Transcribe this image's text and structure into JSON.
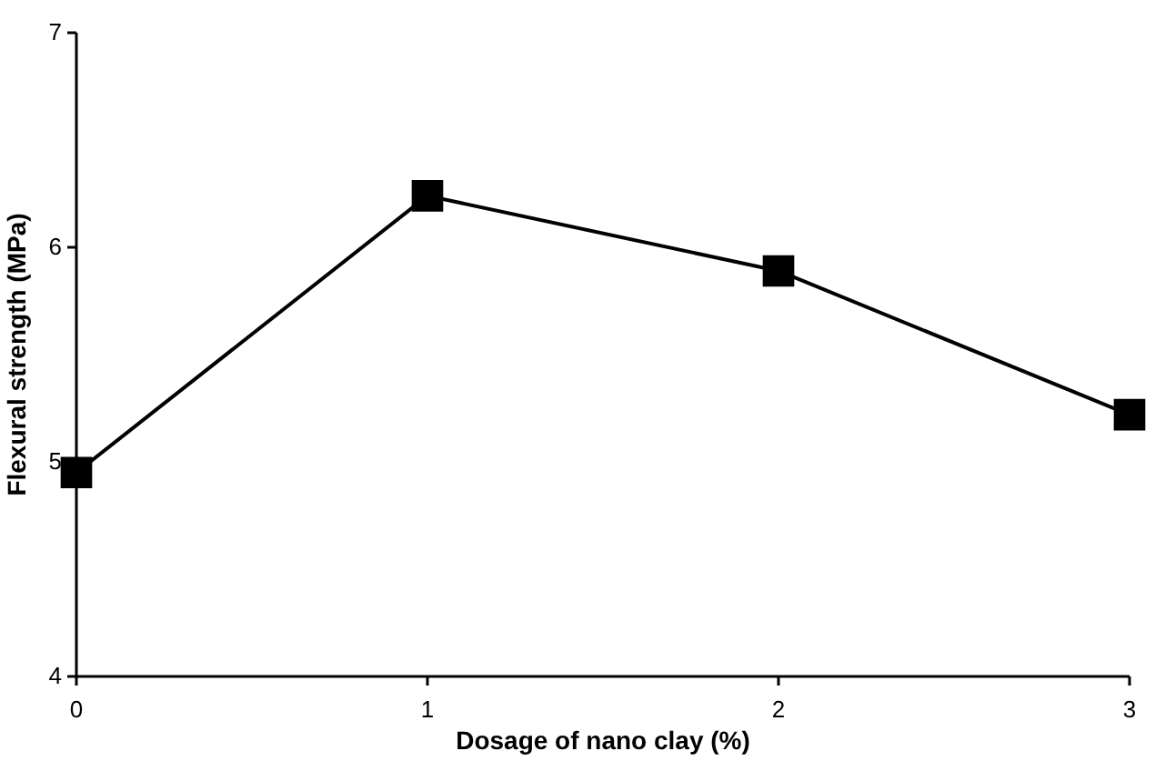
{
  "chart_data": {
    "type": "line",
    "xlabel": "Dosage of nano clay (%)",
    "ylabel": "Flexural strength (MPa)",
    "x": [
      0,
      1,
      2,
      3
    ],
    "series": [
      {
        "color": "#000000",
        "values": [
          4.95,
          6.24,
          5.89,
          5.22
        ]
      }
    ],
    "xlim": [
      0,
      3
    ],
    "xticks": [
      0,
      1,
      2,
      3
    ],
    "ylim": [
      4,
      7
    ],
    "yticks": [
      4,
      5,
      6,
      7
    ],
    "marker": "square",
    "line_style": "solid"
  }
}
